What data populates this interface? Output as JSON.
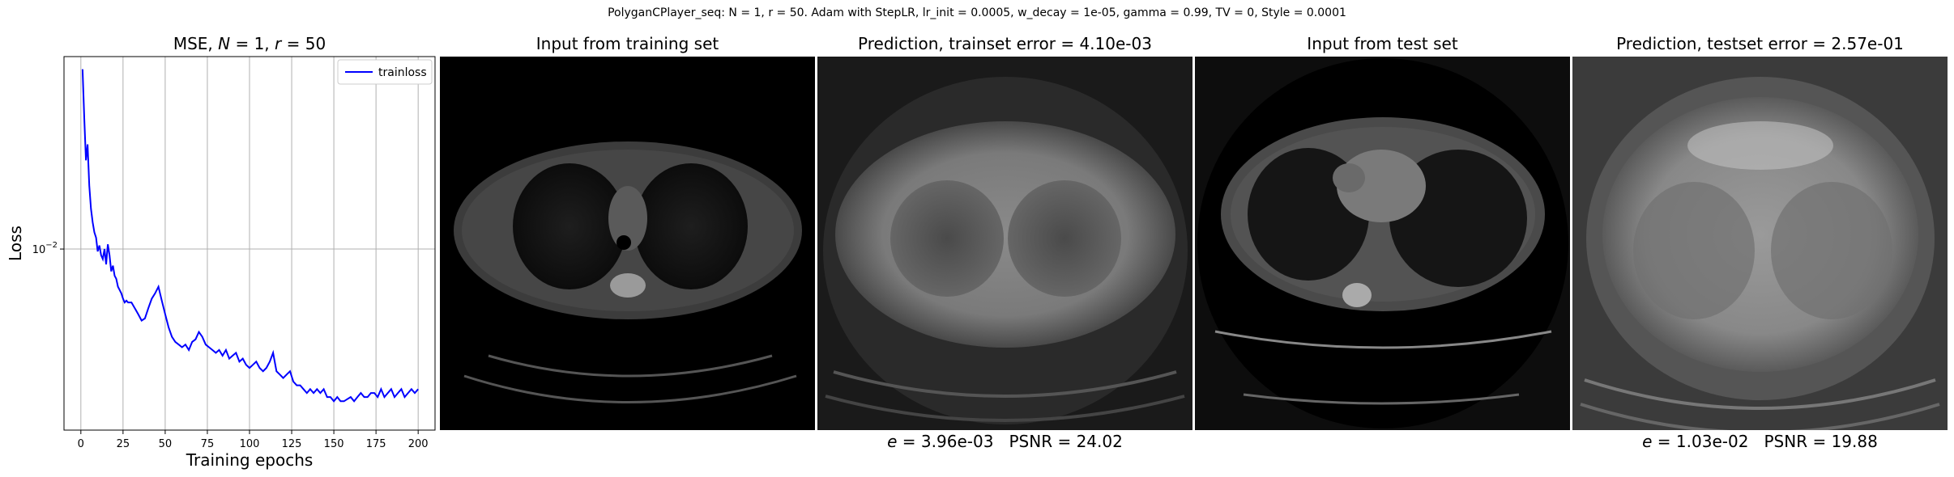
{
  "suptitle": "PolyganCPlayer_seq: N = 1, r = 50. Adam with StepLR, lr_init = 0.0005, w_decay = 1e-05, gamma = 0.99, TV = 0, Style = 0.0001",
  "panels": {
    "loss": {
      "title_prefix": "MSE, ",
      "title_n": "N",
      "title_mid": " = 1, ",
      "title_r": "r",
      "title_suffix": " = 50"
    },
    "train_input": {
      "title": "Input from training set"
    },
    "train_pred": {
      "title": "Prediction, trainset error = 4.10e-03",
      "caption_e": "e",
      "caption_rest": " = 3.96e-03   PSNR = 24.02"
    },
    "test_input": {
      "title": "Input from test set"
    },
    "test_pred": {
      "title": "Prediction, testset error = 2.57e-01",
      "caption_e": "e",
      "caption_rest": " = 1.03e-02   PSNR = 19.88"
    }
  },
  "chart_data": {
    "type": "line",
    "title": "MSE, N = 1, r = 50",
    "xlabel": "Training epochs",
    "ylabel": "Loss",
    "yscale": "log",
    "xlim": [
      -10,
      210
    ],
    "ylim": [
      0.0022,
      0.05
    ],
    "xticks": [
      0,
      25,
      50,
      75,
      100,
      125,
      150,
      175,
      200
    ],
    "yticks": [
      {
        "value": 0.01,
        "label": "10^-2"
      }
    ],
    "grid": true,
    "legend": "top-right",
    "series": [
      {
        "name": "trainloss",
        "color": "#0000ff",
        "x": [
          1,
          2,
          3,
          4,
          5,
          6,
          7,
          8,
          9,
          10,
          11,
          12,
          13,
          14,
          15,
          16,
          17,
          18,
          19,
          20,
          21,
          22,
          23,
          24,
          25,
          26,
          27,
          28,
          30,
          32,
          34,
          36,
          38,
          40,
          42,
          44,
          46,
          48,
          50,
          52,
          54,
          56,
          58,
          60,
          62,
          64,
          66,
          68,
          70,
          72,
          74,
          76,
          78,
          80,
          82,
          84,
          86,
          88,
          90,
          92,
          94,
          96,
          98,
          100,
          102,
          104,
          106,
          108,
          110,
          112,
          114,
          116,
          118,
          120,
          122,
          124,
          126,
          128,
          130,
          132,
          134,
          136,
          138,
          140,
          142,
          144,
          146,
          148,
          150,
          152,
          154,
          156,
          158,
          160,
          162,
          164,
          166,
          168,
          170,
          172,
          174,
          176,
          178,
          180,
          182,
          184,
          186,
          188,
          190,
          192,
          194,
          196,
          198,
          200
        ],
        "y": [
          0.045,
          0.03,
          0.021,
          0.024,
          0.017,
          0.014,
          0.0125,
          0.0115,
          0.011,
          0.0098,
          0.0103,
          0.0095,
          0.0092,
          0.01,
          0.0088,
          0.0104,
          0.0095,
          0.0083,
          0.0087,
          0.008,
          0.0078,
          0.0073,
          0.0071,
          0.0069,
          0.0066,
          0.0064,
          0.0065,
          0.0064,
          0.0064,
          0.0061,
          0.0058,
          0.0055,
          0.0056,
          0.0061,
          0.0066,
          0.0069,
          0.0073,
          0.0065,
          0.0058,
          0.0052,
          0.0048,
          0.0046,
          0.0045,
          0.0044,
          0.0045,
          0.0043,
          0.0046,
          0.0047,
          0.005,
          0.0048,
          0.0045,
          0.0044,
          0.0043,
          0.0042,
          0.0043,
          0.0041,
          0.0043,
          0.004,
          0.0041,
          0.0042,
          0.0039,
          0.004,
          0.0038,
          0.0037,
          0.0038,
          0.0039,
          0.0037,
          0.0036,
          0.0037,
          0.0039,
          0.0042,
          0.0036,
          0.0035,
          0.0034,
          0.0035,
          0.0036,
          0.0033,
          0.0032,
          0.0032,
          0.0031,
          0.003,
          0.0031,
          0.003,
          0.0031,
          0.003,
          0.0031,
          0.0029,
          0.0029,
          0.0028,
          0.0029,
          0.0028,
          0.0028,
          0.00285,
          0.0029,
          0.0028,
          0.0029,
          0.003,
          0.0029,
          0.0029,
          0.003,
          0.003,
          0.0029,
          0.0031,
          0.0029,
          0.003,
          0.0031,
          0.0029,
          0.003,
          0.0031,
          0.0029,
          0.003,
          0.0031,
          0.003,
          0.0031
        ]
      }
    ]
  }
}
